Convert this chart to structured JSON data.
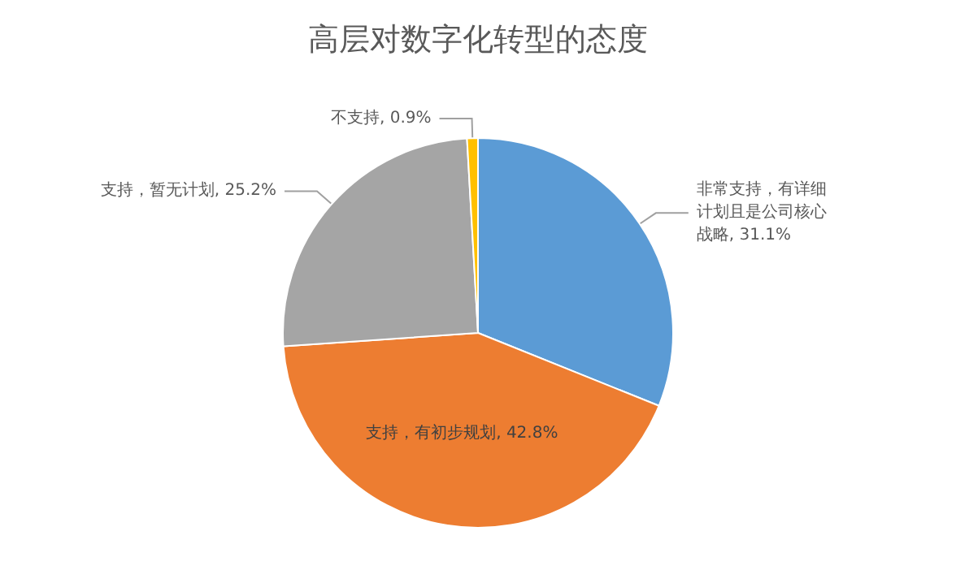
{
  "chart_data": {
    "type": "pie",
    "title": "高层对数字化转型的态度",
    "categories": [
      "非常支持，有详细计划且是公司核心战略",
      "支持，有初步规划",
      "支持，暂无计划",
      "不支持"
    ],
    "values": [
      31.1,
      42.8,
      25.2,
      0.9
    ],
    "value_labels": [
      "31.1%",
      "42.8%",
      "25.2%",
      "0.9%"
    ],
    "colors": [
      "#5b9bd5",
      "#ed7d31",
      "#a5a5a5",
      "#ffc000"
    ],
    "legend": false
  }
}
